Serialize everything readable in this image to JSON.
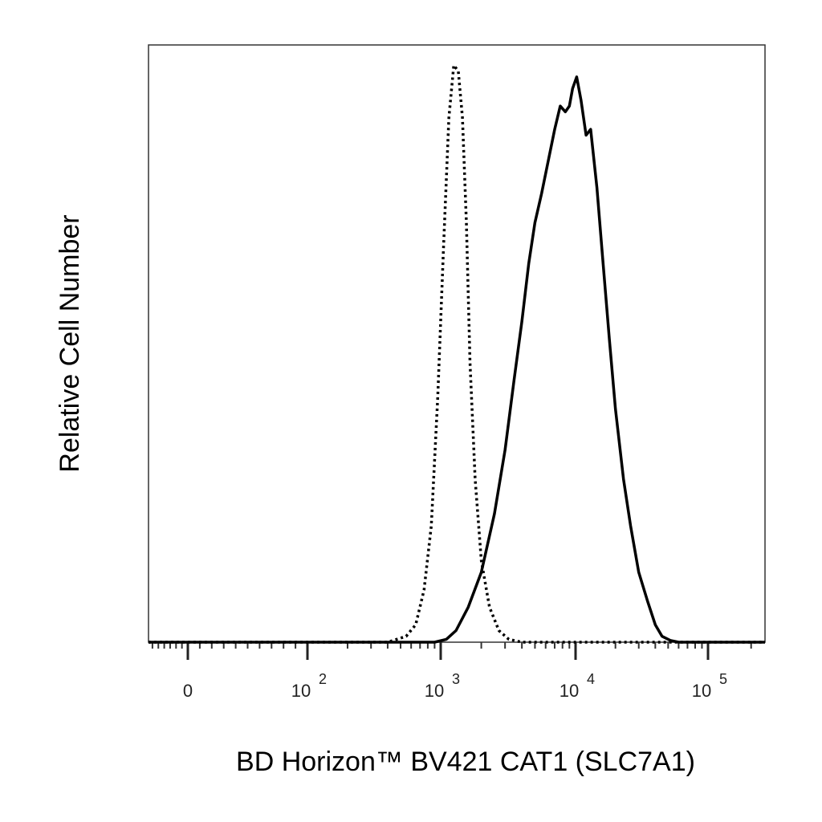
{
  "chart_data": {
    "type": "line",
    "xlabel": "BD Horizon™ BV421 CAT1 (SLC7A1)",
    "ylabel": "Relative Cell Number",
    "x_scale": "biexponential",
    "x_ticks": [
      {
        "value": 0,
        "base": "0",
        "exp": ""
      },
      {
        "value": 100,
        "base": "10",
        "exp": "2"
      },
      {
        "value": 1000,
        "base": "10",
        "exp": "3"
      },
      {
        "value": 10000,
        "base": "10",
        "exp": "4"
      },
      {
        "value": 100000,
        "base": "10",
        "exp": "5"
      }
    ],
    "xlim": [
      -200,
      250000
    ],
    "ylim": [
      0,
      100
    ],
    "grid": false,
    "series": [
      {
        "style": "dotted",
        "color": "#000000",
        "x": [
          -200,
          400,
          550,
          650,
          750,
          850,
          950,
          1050,
          1150,
          1250,
          1350,
          1450,
          1550,
          1650,
          1800,
          2000,
          2300,
          2700,
          3200,
          4000,
          250000
        ],
        "y": [
          0,
          0,
          1,
          3,
          9,
          20,
          42,
          68,
          90,
          99,
          98,
          90,
          72,
          48,
          28,
          14,
          6,
          2,
          0.5,
          0,
          0
        ]
      },
      {
        "style": "solid",
        "color": "#000000",
        "x": [
          -200,
          900,
          1100,
          1300,
          1600,
          2000,
          2500,
          3000,
          3500,
          4000,
          4500,
          5000,
          5600,
          6200,
          7000,
          7700,
          8400,
          9000,
          9500,
          10200,
          11000,
          12000,
          13000,
          14500,
          16000,
          18000,
          20000,
          23000,
          26000,
          30000,
          35000,
          40000,
          45000,
          52000,
          60000,
          250000
        ],
        "y": [
          0,
          0,
          0.5,
          2,
          6,
          12,
          22,
          33,
          45,
          55,
          65,
          72,
          77,
          82,
          88,
          92,
          91,
          92,
          95,
          97,
          93,
          87,
          88,
          78,
          66,
          52,
          40,
          28,
          20,
          12,
          7,
          3,
          1,
          0.3,
          0,
          0
        ]
      }
    ]
  }
}
